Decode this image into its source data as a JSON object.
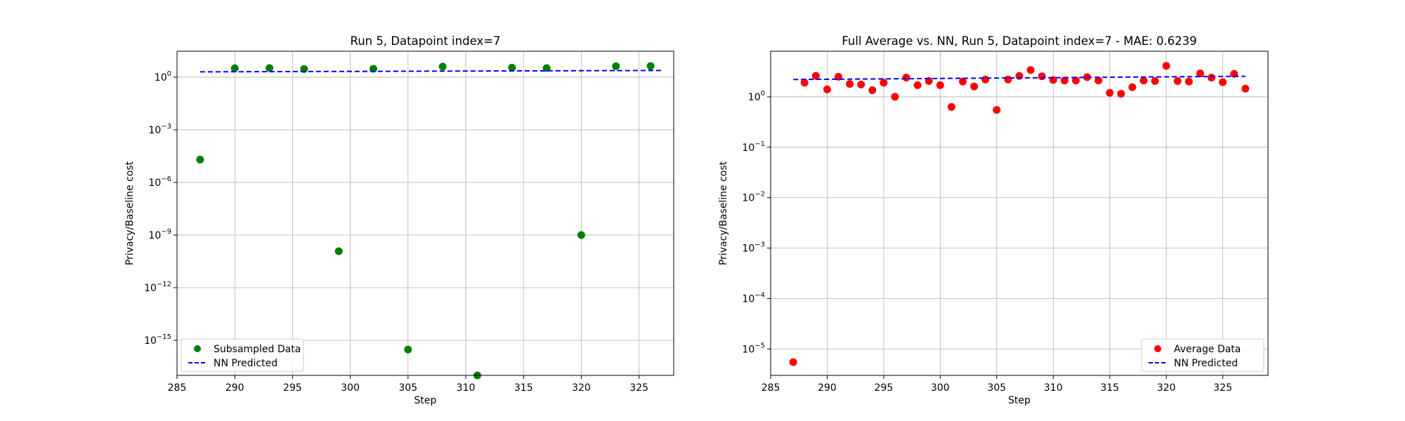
{
  "chart_data": [
    {
      "type": "scatter",
      "title": "Run 5, Datapoint index=7",
      "xlabel": "Step",
      "ylabel": "Privacy/Baseline cost",
      "xlim": [
        285,
        328
      ],
      "ylog": true,
      "ylim": [
        1e-17,
        30
      ],
      "x_ticks": [
        285,
        290,
        295,
        300,
        305,
        310,
        315,
        320,
        325
      ],
      "y_ticks": [
        {
          "value": 1e-15,
          "base": "10",
          "exp": "−15"
        },
        {
          "value": 1e-12,
          "base": "10",
          "exp": "−12"
        },
        {
          "value": 1e-09,
          "base": "10",
          "exp": "−9"
        },
        {
          "value": 1e-06,
          "base": "10",
          "exp": "−6"
        },
        {
          "value": 0.001,
          "base": "10",
          "exp": "−3"
        },
        {
          "value": 1,
          "base": "10",
          "exp": "0"
        }
      ],
      "grid": true,
      "legend_position": "lower-left",
      "series": [
        {
          "name": "Subsampled Data",
          "kind": "points",
          "color": "#008000",
          "x": [
            287,
            290,
            293,
            296,
            299,
            302,
            305,
            308,
            311,
            314,
            317,
            320,
            323,
            326
          ],
          "y": [
            2e-05,
            3.2,
            3.3,
            2.9,
            1.2e-10,
            3.0,
            3e-16,
            4.0,
            1e-17,
            3.5,
            3.3,
            1e-09,
            4.2,
            4.3
          ]
        },
        {
          "name": "NN Predicted",
          "kind": "dashed-line",
          "color": "#0000ff",
          "x": [
            287,
            327
          ],
          "y": [
            2.0,
            2.4
          ]
        }
      ]
    },
    {
      "type": "scatter",
      "title": "Full Average vs. NN, Run 5, Datapoint index=7 - MAE: 0.6239",
      "xlabel": "Step",
      "ylabel": "Privacy/Baseline cost",
      "xlim": [
        285,
        329
      ],
      "ylog": true,
      "ylim": [
        3e-06,
        8
      ],
      "x_ticks": [
        285,
        290,
        295,
        300,
        305,
        310,
        315,
        320,
        325
      ],
      "y_ticks": [
        {
          "value": 1e-05,
          "base": "10",
          "exp": "−5"
        },
        {
          "value": 0.0001,
          "base": "10",
          "exp": "−4"
        },
        {
          "value": 0.001,
          "base": "10",
          "exp": "−3"
        },
        {
          "value": 0.01,
          "base": "10",
          "exp": "−2"
        },
        {
          "value": 0.1,
          "base": "10",
          "exp": "−1"
        },
        {
          "value": 1,
          "base": "10",
          "exp": "0"
        }
      ],
      "grid": true,
      "legend_position": "lower-right",
      "series": [
        {
          "name": "Average Data",
          "kind": "points",
          "color": "#ff0000",
          "x": [
            287,
            288,
            289,
            290,
            291,
            292,
            293,
            294,
            295,
            296,
            297,
            298,
            299,
            300,
            301,
            302,
            303,
            304,
            305,
            306,
            307,
            308,
            309,
            310,
            311,
            312,
            313,
            314,
            315,
            316,
            317,
            318,
            319,
            320,
            321,
            322,
            323,
            324,
            325,
            326,
            327
          ],
          "y": [
            5.5e-06,
            1.9,
            2.6,
            1.4,
            2.5,
            1.8,
            1.75,
            1.35,
            1.9,
            1.0,
            2.4,
            1.7,
            2.05,
            1.7,
            0.63,
            2.0,
            1.6,
            2.2,
            0.55,
            2.2,
            2.6,
            3.4,
            2.55,
            2.15,
            2.1,
            2.1,
            2.45,
            2.1,
            1.2,
            1.15,
            1.55,
            2.1,
            2.05,
            4.1,
            2.05,
            2.0,
            2.9,
            2.4,
            1.95,
            2.85,
            1.45
          ]
        },
        {
          "name": "NN Predicted",
          "kind": "dashed-line",
          "color": "#0000ff",
          "x": [
            287,
            327
          ],
          "y": [
            2.2,
            2.55
          ]
        }
      ]
    }
  ]
}
